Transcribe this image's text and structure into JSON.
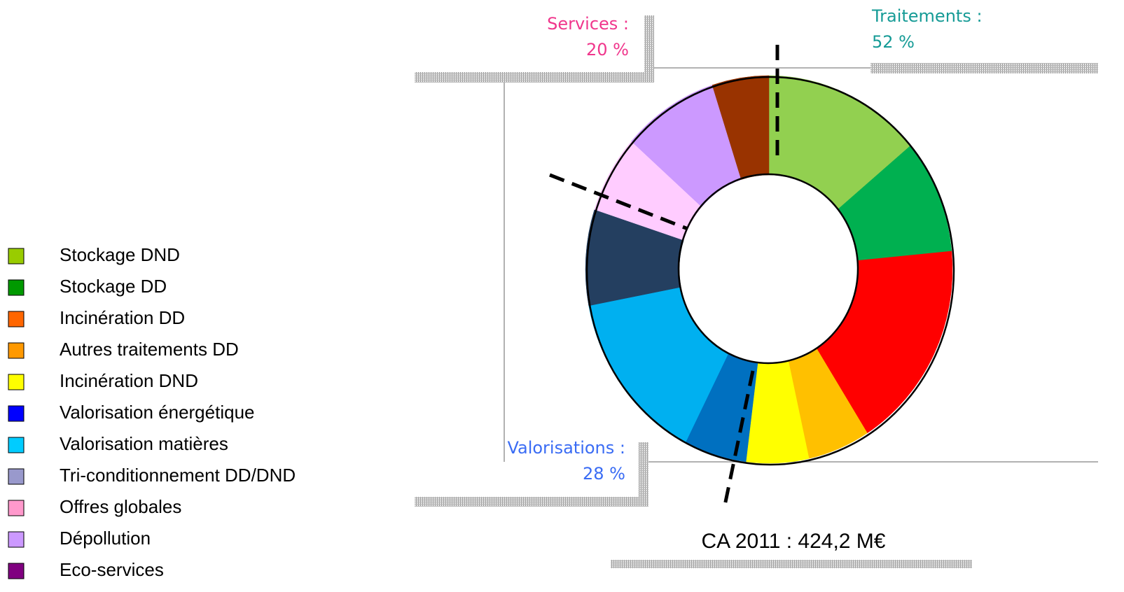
{
  "chart_data": {
    "type": "donut",
    "categories": [
      "Stockage DND",
      "Stockage DD",
      "Incinération DD",
      "Autres traitements DD",
      "Incinération DND",
      "Valorisation énergétique",
      "Valorisation matières",
      "Tri-conditionnement DD/DND",
      "Offres globales",
      "Dépollution",
      "Eco-services"
    ],
    "values": [
      14,
      9.5,
      17.5,
      5.5,
      5.5,
      5.5,
      14.5,
      8,
      6.5,
      8.5,
      5
    ],
    "colors": [
      "#92d050",
      "#00b050",
      "#ff0000",
      "#ffc000",
      "#ffff00",
      "#0070c0",
      "#00b0f0",
      "#243f60",
      "#ffccff",
      "#cc99ff",
      "#993300"
    ],
    "legend_colors": [
      "#99cc00",
      "#009900",
      "#ff6600",
      "#ff9900",
      "#ffff00",
      "#0000ff",
      "#00ccff",
      "#9999cc",
      "#ff99cc",
      "#cc99ff",
      "#800080"
    ],
    "legend": "left",
    "caption": "CA 2011 : 424,2 M€",
    "annotations": [
      {
        "lines": [
          "Services :",
          "20 %"
        ],
        "color": "#f0368c"
      },
      {
        "lines": [
          "Traitements :",
          "52 %"
        ],
        "color": "#169b96"
      },
      {
        "lines": [
          "Valorisations :",
          "28 %"
        ],
        "color": "#3a6cf4"
      }
    ]
  }
}
